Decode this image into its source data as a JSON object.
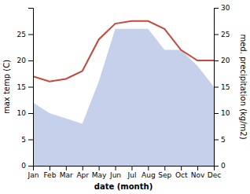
{
  "chart_data": {
    "type": "line",
    "xlabel": "date (month)",
    "ylabel": "max temp (C)",
    "y2label": "med. precipitation (kg/m2)",
    "categories": [
      "Jan",
      "Feb",
      "Mar",
      "Apr",
      "May",
      "Jun",
      "Jul",
      "Aug",
      "Sep",
      "Oct",
      "Nov",
      "Dec"
    ],
    "series": [
      {
        "type": "area",
        "color": "#c5d0ea",
        "values": [
          12,
          10,
          9,
          8,
          16,
          26,
          26,
          26,
          22,
          22,
          19,
          15
        ]
      },
      {
        "type": "line",
        "color": "#c8463a",
        "axis": "y2",
        "values": [
          17,
          16,
          16.5,
          18,
          24,
          27,
          27.5,
          27.5,
          26,
          22,
          20,
          20
        ]
      }
    ],
    "ylim": [
      0,
      30
    ],
    "yticks": [
      0,
      5,
      10,
      15,
      20,
      25
    ],
    "y2lim": [
      0,
      30
    ],
    "y2ticks": [
      0,
      5,
      10,
      15,
      20,
      25,
      30
    ]
  }
}
